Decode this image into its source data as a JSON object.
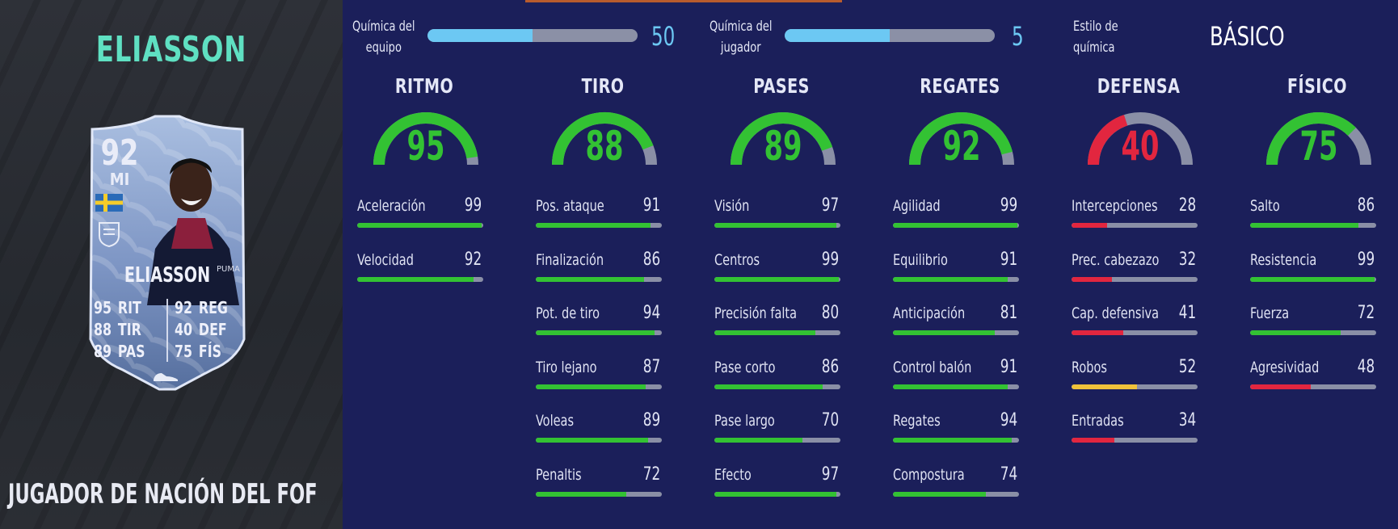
{
  "colors": {
    "green": "#33c233",
    "yellow": "#f0c23a",
    "red": "#e2263f",
    "track": "#8a8fa6",
    "chem_blue": "#6cc8f3",
    "name_teal": "#5fe0c2"
  },
  "player": {
    "name": "ELIASSON",
    "card_name": "ELIASSON",
    "rating": "92",
    "position": "MI",
    "subtitle": "JUGADOR DE NACIÓN DEL FOF",
    "card_stats_left": [
      {
        "value": "95",
        "label": "RIT"
      },
      {
        "value": "88",
        "label": "TIR"
      },
      {
        "value": "89",
        "label": "PAS"
      }
    ],
    "card_stats_right": [
      {
        "value": "92",
        "label": "REG"
      },
      {
        "value": "40",
        "label": "DEF"
      },
      {
        "value": "75",
        "label": "FÍS"
      }
    ]
  },
  "chemistry": {
    "team": {
      "label_1": "Química del",
      "label_2": "equipo",
      "value": "50",
      "max": 100
    },
    "player": {
      "label_1": "Química del",
      "label_2": "jugador",
      "value": "5",
      "max": 10
    },
    "style": {
      "label_1": "Estilo de",
      "label_2": "química",
      "value": "BÁSICO"
    }
  },
  "categories": [
    {
      "title": "RITMO",
      "value": 95,
      "stats": [
        {
          "name": "Aceleración",
          "value": 99
        },
        {
          "name": "Velocidad",
          "value": 92
        }
      ]
    },
    {
      "title": "TIRO",
      "value": 88,
      "stats": [
        {
          "name": "Pos. ataque",
          "value": 91
        },
        {
          "name": "Finalización",
          "value": 86
        },
        {
          "name": "Pot. de tiro",
          "value": 94
        },
        {
          "name": "Tiro lejano",
          "value": 87
        },
        {
          "name": "Voleas",
          "value": 89
        },
        {
          "name": "Penaltis",
          "value": 72
        }
      ]
    },
    {
      "title": "PASES",
      "value": 89,
      "stats": [
        {
          "name": "Visión",
          "value": 97
        },
        {
          "name": "Centros",
          "value": 99
        },
        {
          "name": "Precisión falta",
          "value": 80
        },
        {
          "name": "Pase corto",
          "value": 86
        },
        {
          "name": "Pase largo",
          "value": 70
        },
        {
          "name": "Efecto",
          "value": 97
        }
      ]
    },
    {
      "title": "REGATES",
      "value": 92,
      "stats": [
        {
          "name": "Agilidad",
          "value": 99
        },
        {
          "name": "Equilibrio",
          "value": 91
        },
        {
          "name": "Anticipación",
          "value": 81
        },
        {
          "name": "Control balón",
          "value": 91
        },
        {
          "name": "Regates",
          "value": 94
        },
        {
          "name": "Compostura",
          "value": 74
        }
      ]
    },
    {
      "title": "DEFENSA",
      "value": 40,
      "stats": [
        {
          "name": "Intercepciones",
          "value": 28
        },
        {
          "name": "Prec. cabezazo",
          "value": 32
        },
        {
          "name": "Cap. defensiva",
          "value": 41
        },
        {
          "name": "Robos",
          "value": 52
        },
        {
          "name": "Entradas",
          "value": 34
        }
      ]
    },
    {
      "title": "FÍSICO",
      "value": 75,
      "stats": [
        {
          "name": "Salto",
          "value": 86
        },
        {
          "name": "Resistencia",
          "value": 99
        },
        {
          "name": "Fuerza",
          "value": 72
        },
        {
          "name": "Agresividad",
          "value": 48
        }
      ]
    }
  ]
}
